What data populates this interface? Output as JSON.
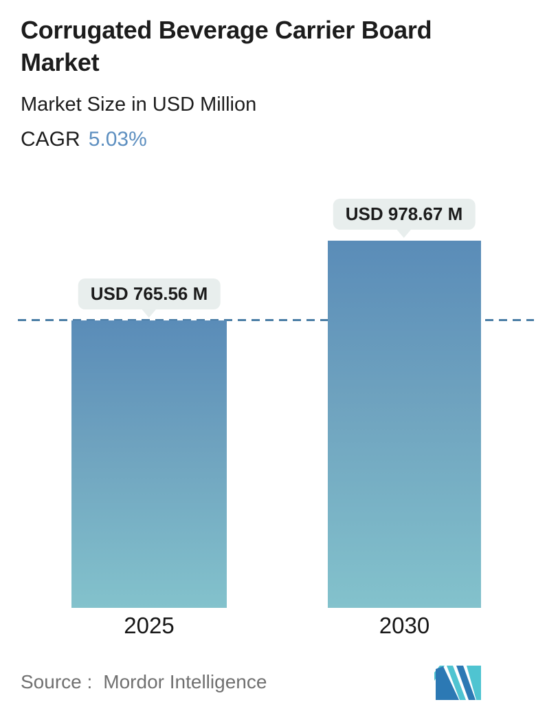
{
  "header": {
    "title_lines": [
      "Corrugated Beverage Carrier Board",
      "Market"
    ],
    "subtitle": "Market Size in USD Million",
    "cagr_label": "CAGR",
    "cagr_value": "5.03%"
  },
  "chart_data": {
    "type": "bar",
    "title": "Corrugated Beverage Carrier Board Market",
    "subtitle": "Market Size in USD Million",
    "unit": "USD Million",
    "cagr_percent": 5.03,
    "categories": [
      "2025",
      "2030"
    ],
    "values": [
      765.56,
      978.67
    ],
    "bars": [
      {
        "category": "2025",
        "value": 765.56,
        "label": "USD 765.56 M"
      },
      {
        "category": "2030",
        "value": 978.67,
        "label": "USD 978.67 M"
      }
    ],
    "reference_line": {
      "value": 765.56,
      "style": "dashed",
      "color": "#4A7DA5"
    },
    "ylim": [
      0,
      1100
    ],
    "grid": false,
    "legend": false,
    "bar_gradient_top": "#5A8CB8",
    "bar_gradient_bottom": "#83C2CC"
  },
  "footer": {
    "source_label": "Source :",
    "source_value": "Mordor Intelligence"
  },
  "colors": {
    "title_text": "#1C1C1C",
    "cagr_value": "#5D8FC0",
    "dashed_line": "#4A7DA5",
    "callout_bg": "#E8EEED",
    "source_text": "#707070",
    "logo_blue": "#2C79B4",
    "logo_teal": "#4FC4D1",
    "background": "#FFFFFF"
  }
}
